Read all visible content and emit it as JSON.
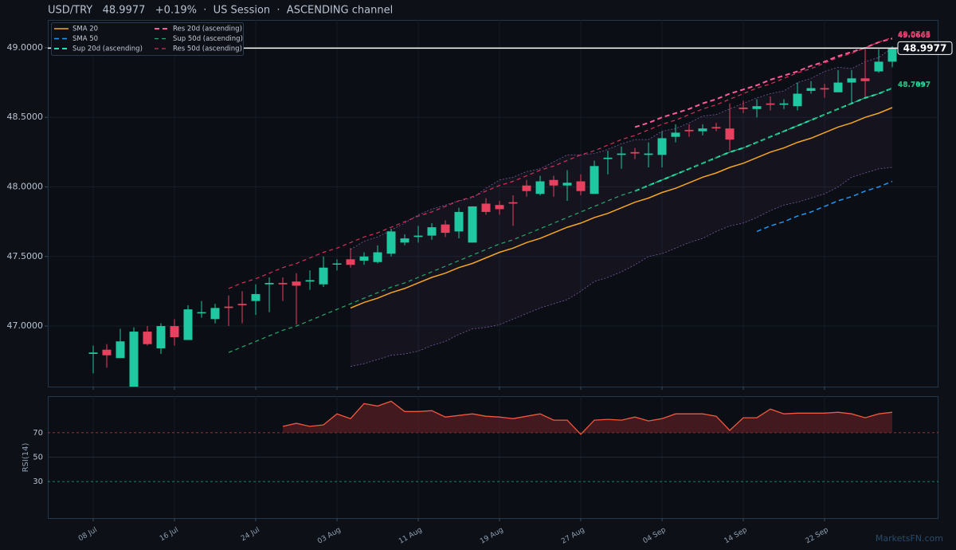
{
  "chart_data": [
    {
      "type": "candlestick",
      "title": "USD/TRY   48.9977   +0.19%  ·  US Session  ·  ASCENDING channel",
      "categories": [
        "08 Jul",
        null,
        null,
        null,
        null,
        null,
        "16 Jul",
        null,
        null,
        null,
        null,
        null,
        "24 Jul",
        null,
        null,
        null,
        null,
        null,
        "03 Aug",
        null,
        null,
        null,
        null,
        null,
        "11 Aug",
        null,
        null,
        null,
        null,
        null,
        "19 Aug",
        null,
        null,
        null,
        null,
        null,
        "27 Aug",
        null,
        null,
        null,
        null,
        null,
        "04 Sep",
        null,
        null,
        null,
        null,
        null,
        "14 Sep",
        null,
        null,
        null,
        null,
        null,
        "22 Sep",
        null,
        null,
        null,
        null,
        null
      ],
      "open": [
        46.8,
        46.83,
        46.77,
        46.52,
        46.96,
        46.84,
        47.0,
        46.9,
        47.1,
        47.05,
        47.14,
        47.16,
        47.18,
        47.3,
        47.31,
        47.32,
        47.32,
        47.3,
        47.45,
        47.48,
        47.47,
        47.46,
        47.52,
        47.6,
        47.64,
        47.65,
        47.73,
        47.68,
        47.6,
        47.88,
        47.87,
        47.89,
        48.01,
        47.95,
        48.05,
        48.01,
        48.04,
        47.95,
        48.2,
        48.23,
        48.25,
        48.23,
        48.23,
        48.36,
        48.41,
        48.4,
        48.43,
        48.42,
        48.57,
        48.56,
        48.6,
        48.59,
        48.58,
        48.69,
        48.71,
        48.68,
        48.75,
        48.78,
        48.83,
        48.9
      ],
      "high": [
        46.86,
        46.87,
        46.98,
        46.99,
        47.0,
        47.02,
        47.05,
        47.15,
        47.18,
        47.16,
        47.22,
        47.25,
        47.3,
        47.35,
        47.35,
        47.38,
        47.4,
        47.5,
        47.48,
        47.56,
        47.53,
        47.58,
        47.7,
        47.66,
        47.72,
        47.74,
        47.76,
        47.85,
        47.86,
        47.92,
        47.9,
        47.94,
        48.05,
        48.08,
        48.08,
        48.12,
        48.09,
        48.19,
        48.26,
        48.29,
        48.28,
        48.32,
        48.4,
        48.45,
        48.45,
        48.45,
        48.46,
        48.6,
        48.62,
        48.63,
        48.65,
        48.63,
        48.75,
        48.76,
        48.74,
        48.84,
        48.84,
        48.99,
        48.99,
        49.01
      ],
      "low": [
        46.66,
        46.7,
        46.77,
        46.52,
        46.86,
        46.8,
        46.86,
        46.9,
        47.06,
        47.02,
        47.0,
        47.02,
        47.08,
        47.1,
        47.18,
        47.01,
        47.26,
        47.28,
        47.4,
        47.42,
        47.44,
        47.45,
        47.5,
        47.58,
        47.6,
        47.62,
        47.64,
        47.63,
        47.6,
        47.8,
        47.8,
        47.72,
        47.93,
        47.94,
        47.93,
        47.9,
        47.94,
        47.95,
        48.09,
        48.13,
        48.2,
        48.14,
        48.14,
        48.32,
        48.36,
        48.37,
        48.4,
        48.26,
        48.53,
        48.5,
        48.55,
        48.56,
        48.55,
        48.67,
        48.64,
        48.68,
        48.6,
        48.64,
        48.82,
        48.86
      ],
      "close": [
        46.81,
        46.79,
        46.89,
        46.96,
        46.87,
        47.0,
        46.92,
        47.12,
        47.1,
        47.13,
        47.13,
        47.15,
        47.23,
        47.31,
        47.3,
        47.29,
        47.33,
        47.42,
        47.45,
        47.44,
        47.5,
        47.53,
        47.68,
        47.63,
        47.65,
        47.71,
        47.67,
        47.82,
        47.86,
        47.82,
        47.84,
        47.88,
        47.97,
        48.04,
        48.01,
        48.03,
        47.97,
        48.15,
        48.21,
        48.24,
        48.24,
        48.24,
        48.35,
        48.39,
        48.4,
        48.42,
        48.42,
        48.34,
        48.56,
        48.58,
        48.59,
        48.6,
        48.67,
        48.71,
        48.7,
        48.75,
        48.78,
        48.76,
        48.9,
        48.9977
      ],
      "up_color": "#1fc8a0",
      "down_color": "#e8405f",
      "ylim": [
        46.565,
        49.2
      ],
      "yticks": [
        {
          "value": 47,
          "label": "47.0000"
        },
        {
          "value": 47.5,
          "label": "47.5000"
        },
        {
          "value": 48,
          "label": "48.0000"
        },
        {
          "value": 48.5,
          "label": "48.5000"
        },
        {
          "value": 49,
          "label": "49.0000"
        }
      ],
      "grid": true,
      "band_color": "#7a5a9c",
      "band_upper": [
        null,
        null,
        null,
        null,
        null,
        null,
        null,
        null,
        null,
        null,
        null,
        null,
        null,
        null,
        null,
        null,
        null,
        null,
        null,
        47.55,
        47.61,
        47.64,
        47.69,
        47.74,
        47.8,
        47.84,
        47.87,
        47.9,
        47.92,
        47.99,
        48.05,
        48.07,
        48.11,
        48.13,
        48.18,
        48.23,
        48.23,
        48.24,
        48.27,
        48.31,
        48.34,
        48.34,
        48.4,
        48.42,
        48.46,
        48.51,
        48.52,
        48.56,
        48.6,
        48.64,
        48.67,
        48.69,
        48.75,
        48.78,
        48.83,
        48.86,
        48.85,
        48.9,
        48.93,
        49.0
      ],
      "band_lower": [
        null,
        null,
        null,
        null,
        null,
        null,
        null,
        null,
        null,
        null,
        null,
        null,
        null,
        null,
        null,
        null,
        null,
        null,
        null,
        46.71,
        46.73,
        46.76,
        46.79,
        46.8,
        46.82,
        46.86,
        46.89,
        46.94,
        46.98,
        46.99,
        47.01,
        47.05,
        47.09,
        47.13,
        47.16,
        47.19,
        47.25,
        47.32,
        47.35,
        47.39,
        47.44,
        47.5,
        47.52,
        47.56,
        47.6,
        47.63,
        47.68,
        47.72,
        47.74,
        47.78,
        47.83,
        47.87,
        47.89,
        47.92,
        47.95,
        48.0,
        48.07,
        48.1,
        48.13,
        48.14
      ],
      "series": [
        {
          "name": "SMA 20",
          "color": "#f5a623",
          "dash": "none",
          "width": 1.5,
          "label_last": false,
          "values": [
            null,
            null,
            null,
            null,
            null,
            null,
            null,
            null,
            null,
            null,
            null,
            null,
            null,
            null,
            null,
            null,
            null,
            null,
            null,
            47.13,
            47.17,
            47.2,
            47.24,
            47.27,
            47.31,
            47.35,
            47.38,
            47.42,
            47.45,
            47.49,
            47.53,
            47.56,
            47.6,
            47.63,
            47.67,
            47.71,
            47.74,
            47.78,
            47.81,
            47.85,
            47.89,
            47.92,
            47.96,
            47.99,
            48.03,
            48.07,
            48.1,
            48.14,
            48.17,
            48.21,
            48.25,
            48.28,
            48.32,
            48.35,
            48.39,
            48.43,
            48.46,
            48.5,
            48.53,
            48.57
          ]
        },
        {
          "name": "SMA 50",
          "color": "#2196f3",
          "dash": "6 4",
          "width": 1.5,
          "label_last": false,
          "values": [
            null,
            null,
            null,
            null,
            null,
            null,
            null,
            null,
            null,
            null,
            null,
            null,
            null,
            null,
            null,
            null,
            null,
            null,
            null,
            null,
            null,
            null,
            null,
            null,
            null,
            null,
            null,
            null,
            null,
            null,
            null,
            null,
            null,
            null,
            null,
            null,
            null,
            null,
            null,
            null,
            null,
            null,
            null,
            null,
            null,
            null,
            null,
            null,
            null,
            47.68,
            47.72,
            47.75,
            47.79,
            47.82,
            47.86,
            47.9,
            47.93,
            47.97,
            48.0,
            48.04
          ]
        },
        {
          "name": "Sup 20d (ascending)",
          "color": "#1de9b6",
          "dash": "6 4",
          "width": 2,
          "label_last": true,
          "values": [
            null,
            null,
            null,
            null,
            null,
            null,
            null,
            null,
            null,
            null,
            null,
            null,
            null,
            null,
            null,
            null,
            null,
            null,
            null,
            null,
            null,
            null,
            null,
            null,
            null,
            null,
            null,
            null,
            null,
            null,
            null,
            null,
            null,
            null,
            null,
            null,
            null,
            null,
            null,
            null,
            47.97,
            48.01,
            48.05,
            48.09,
            48.13,
            48.17,
            48.21,
            48.25,
            48.28,
            48.32,
            48.36,
            48.4,
            48.44,
            48.48,
            48.52,
            48.56,
            48.6,
            48.64,
            48.67,
            48.7097
          ]
        },
        {
          "name": "Res 20d (ascending)",
          "color": "#ff5c9a",
          "dash": "6 4",
          "width": 2,
          "label_last": true,
          "values": [
            null,
            null,
            null,
            null,
            null,
            null,
            null,
            null,
            null,
            null,
            null,
            null,
            null,
            null,
            null,
            null,
            null,
            null,
            null,
            null,
            null,
            null,
            null,
            null,
            null,
            null,
            null,
            null,
            null,
            null,
            null,
            null,
            null,
            null,
            null,
            null,
            null,
            null,
            null,
            null,
            48.43,
            48.46,
            48.5,
            48.53,
            48.56,
            48.6,
            48.63,
            48.67,
            48.7,
            48.73,
            48.77,
            48.8,
            48.83,
            48.87,
            48.9,
            48.94,
            48.97,
            49.0,
            49.04,
            49.0665
          ]
        },
        {
          "name": "Sup 50d (ascending)",
          "color": "#26a96c",
          "dash": "5 4",
          "width": 1.2,
          "label_last": true,
          "values": [
            null,
            null,
            null,
            null,
            null,
            null,
            null,
            null,
            null,
            null,
            46.81,
            46.85,
            46.89,
            46.93,
            46.97,
            47.0,
            47.04,
            47.08,
            47.12,
            47.16,
            47.2,
            47.24,
            47.28,
            47.31,
            47.35,
            47.39,
            47.43,
            47.47,
            47.51,
            47.55,
            47.59,
            47.62,
            47.66,
            47.7,
            47.74,
            47.78,
            47.82,
            47.86,
            47.9,
            47.94,
            47.97,
            48.01,
            48.05,
            48.09,
            48.13,
            48.17,
            48.21,
            48.25,
            48.28,
            48.32,
            48.36,
            48.4,
            48.44,
            48.48,
            48.52,
            48.56,
            48.6,
            48.64,
            48.67,
            48.7117
          ]
        },
        {
          "name": "Res 50d (ascending)",
          "color": "#d6305a",
          "dash": "5 4",
          "width": 1.2,
          "label_last": true,
          "values": [
            null,
            null,
            null,
            null,
            null,
            null,
            null,
            null,
            null,
            null,
            47.27,
            47.31,
            47.34,
            47.38,
            47.42,
            47.45,
            47.49,
            47.53,
            47.56,
            47.6,
            47.64,
            47.67,
            47.71,
            47.75,
            47.79,
            47.82,
            47.86,
            47.9,
            47.93,
            47.97,
            48.01,
            48.04,
            48.08,
            48.12,
            48.15,
            48.19,
            48.23,
            48.26,
            48.3,
            48.34,
            48.37,
            48.41,
            48.45,
            48.48,
            48.52,
            48.56,
            48.59,
            48.63,
            48.67,
            48.71,
            48.74,
            48.78,
            48.82,
            48.85,
            48.89,
            48.93,
            48.96,
            49.0,
            49.04,
            49.0745
          ]
        }
      ]
    },
    {
      "type": "line",
      "ylabel": "RSI(14)",
      "color": "#f0583f",
      "fill_color": "#5a1e24",
      "ylim": [
        0,
        100
      ],
      "yticks": [
        30,
        50,
        70
      ],
      "grid_colors": [
        "#1fa88a",
        "#2a323e",
        "#c8403a"
      ],
      "grid_dash": [
        "3 3",
        "none",
        "3 3"
      ],
      "values": [
        null,
        null,
        null,
        null,
        null,
        null,
        null,
        null,
        null,
        null,
        null,
        null,
        null,
        null,
        75.2,
        77.7,
        75.2,
        76.5,
        85.5,
        81.6,
        93.9,
        91.9,
        95.8,
        87.4,
        87.4,
        88.1,
        82.9,
        84.2,
        85.5,
        83.5,
        82.9,
        81.6,
        83.5,
        85.5,
        80.3,
        80.3,
        68.7,
        80.3,
        81.0,
        80.3,
        82.9,
        79.7,
        81.6,
        85.5,
        85.5,
        85.5,
        83.5,
        71.9,
        82.3,
        82.3,
        89.4,
        85.5,
        86.1,
        86.1,
        86.1,
        86.8,
        85.5,
        82.3,
        85.5,
        86.8
      ]
    }
  ],
  "watermark": "MarketsFN.com"
}
